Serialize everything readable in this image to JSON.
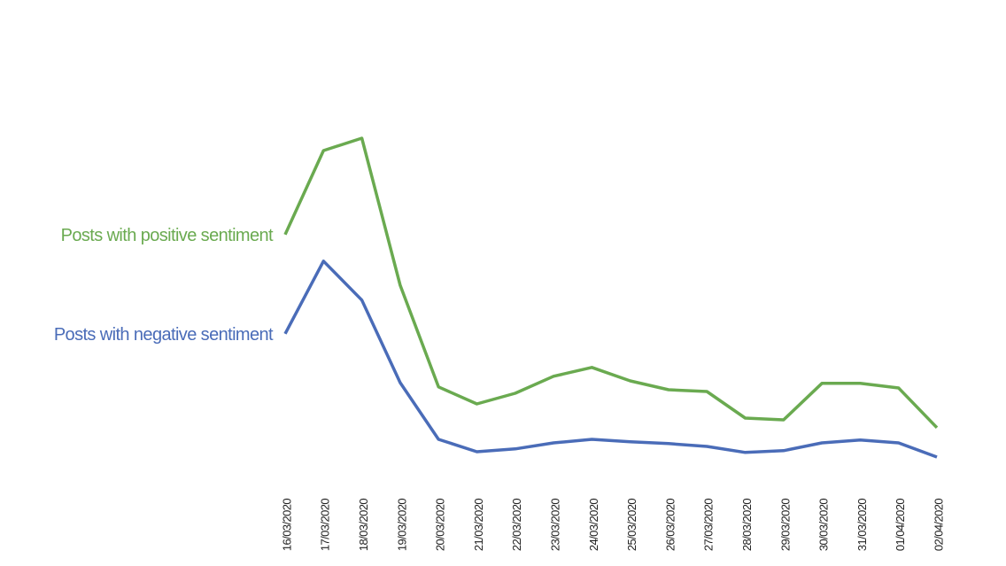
{
  "chart_data": {
    "type": "line",
    "categories": [
      "16/03/2020",
      "17/03/2020",
      "18/03/2020",
      "19/03/2020",
      "20/03/2020",
      "21/03/2020",
      "22/03/2020",
      "23/03/2020",
      "24/03/2020",
      "25/03/2020",
      "26/03/2020",
      "27/03/2020",
      "28/03/2020",
      "29/03/2020",
      "30/03/2020",
      "31/03/2020",
      "01/04/2020",
      "02/04/2020"
    ],
    "series": [
      {
        "name": "Posts with positive sentiment",
        "color": "#6aaa50",
        "values": [
          73.8,
          97.5,
          101,
          59.5,
          30.8,
          26,
          29,
          33.8,
          36.3,
          32.5,
          30,
          29.5,
          22,
          21.5,
          31.8,
          31.8,
          30.5,
          19.3
        ]
      },
      {
        "name": "Posts with negative sentiment",
        "color": "#4a6cb8",
        "values": [
          45.8,
          66.3,
          55.3,
          32,
          16,
          12.5,
          13.3,
          15,
          16,
          15.3,
          14.8,
          14,
          12.3,
          12.8,
          15,
          15.8,
          15,
          11
        ]
      }
    ],
    "ylim": [
      0,
      125
    ]
  }
}
